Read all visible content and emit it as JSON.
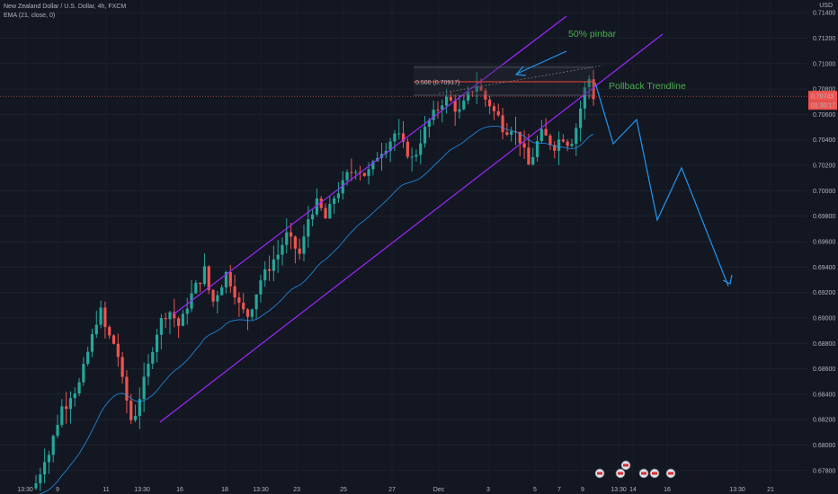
{
  "header": {
    "symbol": "New Zealand Dollar / U.S. Dollar, 4h, FXCM",
    "indicator": "EMA (21, close, 0)",
    "currency": "USD"
  },
  "colors": {
    "background": "#131722",
    "bull": "#26a69a",
    "bear": "#ef5350",
    "channel": "#9c27ff",
    "ema": "#2196f3",
    "annotation": "#4caf50",
    "projection": "#2196f3"
  },
  "chart_data": {
    "type": "candlestick",
    "y_range": [
      0.677,
      0.715
    ],
    "y_ticks": [
      "0.71400",
      "0.71200",
      "0.71000",
      "0.70800",
      "0.70600",
      "0.70400",
      "0.70200",
      "0.70000",
      "0.69800",
      "0.69600",
      "0.69400",
      "0.69200",
      "0.69000",
      "0.68800",
      "0.68600",
      "0.68400",
      "0.68200",
      "0.68000",
      "0.67800"
    ],
    "x_ticks": [
      "13:30",
      "9",
      "11",
      "13:30",
      "16",
      "18",
      "13:30",
      "23",
      "25",
      "27",
      "Dec",
      "3",
      "5",
      "7",
      "9",
      "13:30",
      "14",
      "16",
      "13:30",
      "21"
    ],
    "last_price": "0.70743",
    "countdown": "01:30:17",
    "annotations": [
      "50% pinbar",
      "Pollback Trendline"
    ],
    "fib_label": "0.500 (0.70917)",
    "projection_path": [
      0.7085,
      0.7037,
      0.7056,
      0.6977,
      0.7018,
      0.6925
    ],
    "trend": [
      0.677,
      0.6779,
      0.679,
      0.6793,
      0.6806,
      0.6818,
      0.683,
      0.6832,
      0.684,
      0.6843,
      0.6848,
      0.686,
      0.6873,
      0.6885,
      0.6898,
      0.6905,
      0.6892,
      0.6885,
      0.688,
      0.687,
      0.685,
      0.6835,
      0.682,
      0.6825,
      0.6838,
      0.685,
      0.6862,
      0.6877,
      0.6889,
      0.6898,
      0.6903,
      0.6905,
      0.69,
      0.6894,
      0.69,
      0.691,
      0.6918,
      0.6925,
      0.693,
      0.6938,
      0.6922,
      0.6913,
      0.692,
      0.6927,
      0.6935,
      0.6928,
      0.692,
      0.691,
      0.6905,
      0.6902,
      0.691,
      0.692,
      0.693,
      0.6935,
      0.694,
      0.6946,
      0.695,
      0.6958,
      0.6965,
      0.696,
      0.6955,
      0.695,
      0.6962,
      0.6978,
      0.6985,
      0.699,
      0.6985,
      0.6978,
      0.6986,
      0.6995,
      0.7,
      0.7005,
      0.7012,
      0.7015,
      0.7018,
      0.7016,
      0.7013,
      0.7015,
      0.702,
      0.7028,
      0.7032,
      0.7035,
      0.704,
      0.7045,
      0.7042,
      0.7035,
      0.703,
      0.7025,
      0.703,
      0.704,
      0.7048,
      0.7055,
      0.706,
      0.7065,
      0.707,
      0.7072,
      0.707,
      0.7065,
      0.7062,
      0.7068,
      0.7075,
      0.708,
      0.7083,
      0.7078,
      0.7072,
      0.7068,
      0.7062,
      0.7058,
      0.705,
      0.7048,
      0.705,
      0.7045,
      0.704,
      0.703,
      0.702,
      0.7028,
      0.7038,
      0.7045,
      0.7042,
      0.7038,
      0.7035,
      0.704,
      0.7042,
      0.7038,
      0.704,
      0.705,
      0.7065,
      0.708,
      0.7088,
      0.7074
    ]
  }
}
